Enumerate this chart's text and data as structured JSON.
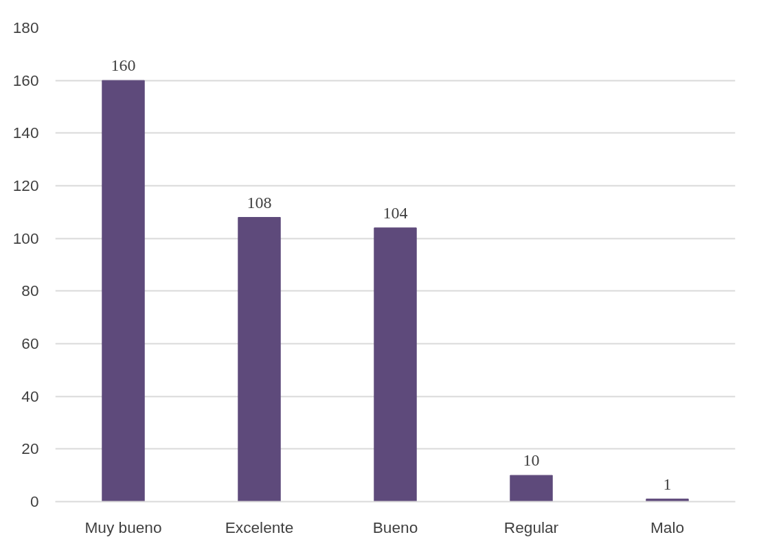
{
  "chart_data": {
    "type": "bar",
    "categories": [
      "Muy bueno",
      "Excelente",
      "Bueno",
      "Regular",
      "Malo"
    ],
    "values": [
      160,
      108,
      104,
      10,
      1
    ],
    "color": "#5e4a7b",
    "ylim": [
      0,
      180
    ],
    "yticks": [
      0,
      20,
      40,
      60,
      80,
      100,
      120,
      140,
      160,
      180
    ],
    "grid": "y",
    "data_labels": true
  }
}
